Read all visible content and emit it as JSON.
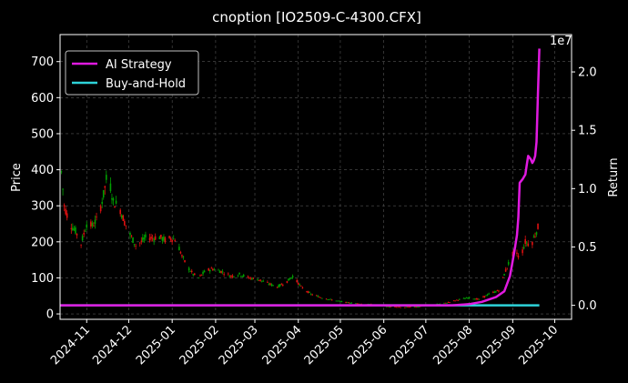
{
  "chart_data": {
    "type": "candlestick+line",
    "title": "cnoption [IO2509-C-4300.CFX]",
    "left_axis": {
      "label": "Price",
      "ylim": [
        -15,
        775
      ],
      "ticks": [
        0,
        100,
        200,
        300,
        400,
        500,
        600,
        700
      ]
    },
    "right_axis": {
      "label": "Return",
      "offset_text": "1e7",
      "ylim": [
        -0.12,
        2.32
      ],
      "ticks": [
        0.0,
        0.5,
        1.0,
        1.5,
        2.0
      ],
      "tick_labels": [
        "0.0",
        "0.5",
        "1.0",
        "1.5",
        "2.0"
      ]
    },
    "x_axis": {
      "xlim": [
        "2024-10-13",
        "2025-10-13"
      ],
      "tick_dates": [
        "2024-11-01",
        "2024-12-01",
        "2025-01-01",
        "2025-02-01",
        "2025-03-01",
        "2025-04-01",
        "2025-05-01",
        "2025-06-01",
        "2025-07-01",
        "2025-08-01",
        "2025-09-01",
        "2025-10-01"
      ],
      "tick_labels": [
        "2024-11",
        "2024-12",
        "2025-01",
        "2025-02",
        "2025-03",
        "2025-04",
        "2025-05",
        "2025-06",
        "2025-07",
        "2025-08",
        "2025-09",
        "2025-10"
      ]
    },
    "grid": true,
    "legend": {
      "placement": "top-left",
      "entries": [
        {
          "name": "AI Strategy",
          "color": "#e01ae0"
        },
        {
          "name": "Buy-and-Hold",
          "color": "#2ed3d9"
        }
      ]
    },
    "up_color": "#00a000",
    "down_color": "#e01010",
    "price_series": [
      [
        "2024-10-13",
        440
      ],
      [
        "2024-10-16",
        300
      ],
      [
        "2024-10-20",
        250
      ],
      [
        "2024-10-24",
        230
      ],
      [
        "2024-10-28",
        195
      ],
      [
        "2024-11-01",
        250
      ],
      [
        "2024-11-05",
        245
      ],
      [
        "2024-11-09",
        265
      ],
      [
        "2024-11-13",
        330
      ],
      [
        "2024-11-16",
        395
      ],
      [
        "2024-11-20",
        310
      ],
      [
        "2024-11-24",
        300
      ],
      [
        "2024-11-28",
        255
      ],
      [
        "2024-12-02",
        220
      ],
      [
        "2024-12-06",
        190
      ],
      [
        "2024-12-10",
        200
      ],
      [
        "2024-12-14",
        215
      ],
      [
        "2024-12-18",
        210
      ],
      [
        "2024-12-22",
        215
      ],
      [
        "2024-12-27",
        205
      ],
      [
        "2024-12-31",
        210
      ],
      [
        "2025-01-04",
        205
      ],
      [
        "2025-01-08",
        160
      ],
      [
        "2025-01-12",
        130
      ],
      [
        "2025-01-16",
        110
      ],
      [
        "2025-01-20",
        100
      ],
      [
        "2025-01-25",
        120
      ],
      [
        "2025-01-30",
        125
      ],
      [
        "2025-02-05",
        118
      ],
      [
        "2025-02-12",
        105
      ],
      [
        "2025-02-18",
        110
      ],
      [
        "2025-02-25",
        100
      ],
      [
        "2025-03-04",
        95
      ],
      [
        "2025-03-10",
        85
      ],
      [
        "2025-03-17",
        75
      ],
      [
        "2025-03-24",
        90
      ],
      [
        "2025-03-28",
        105
      ],
      [
        "2025-04-03",
        75
      ],
      [
        "2025-04-10",
        55
      ],
      [
        "2025-04-18",
        45
      ],
      [
        "2025-04-26",
        38
      ],
      [
        "2025-05-05",
        32
      ],
      [
        "2025-05-15",
        28
      ],
      [
        "2025-05-25",
        26
      ],
      [
        "2025-06-05",
        20
      ],
      [
        "2025-06-15",
        18
      ],
      [
        "2025-06-25",
        20
      ],
      [
        "2025-07-05",
        25
      ],
      [
        "2025-07-15",
        30
      ],
      [
        "2025-07-25",
        40
      ],
      [
        "2025-08-01",
        45
      ],
      [
        "2025-08-08",
        40
      ],
      [
        "2025-08-15",
        55
      ],
      [
        "2025-08-22",
        65
      ],
      [
        "2025-08-26",
        110
      ],
      [
        "2025-08-30",
        150
      ],
      [
        "2025-09-03",
        180
      ],
      [
        "2025-09-06",
        150
      ],
      [
        "2025-09-10",
        200
      ],
      [
        "2025-09-14",
        190
      ],
      [
        "2025-09-17",
        220
      ],
      [
        "2025-09-20",
        250
      ],
      [
        "2025-09-22",
        205
      ]
    ],
    "ai_strategy_return": [
      [
        "2024-10-13",
        0.0
      ],
      [
        "2025-07-20",
        0.0
      ],
      [
        "2025-08-01",
        0.01
      ],
      [
        "2025-08-10",
        0.03
      ],
      [
        "2025-08-20",
        0.07
      ],
      [
        "2025-08-26",
        0.12
      ],
      [
        "2025-08-30",
        0.25
      ],
      [
        "2025-09-02",
        0.45
      ],
      [
        "2025-09-04",
        0.6
      ],
      [
        "2025-09-05",
        0.75
      ],
      [
        "2025-09-06",
        1.05
      ],
      [
        "2025-09-08",
        1.08
      ],
      [
        "2025-09-10",
        1.12
      ],
      [
        "2025-09-11",
        1.2
      ],
      [
        "2025-09-12",
        1.28
      ],
      [
        "2025-09-14",
        1.25
      ],
      [
        "2025-09-15",
        1.22
      ],
      [
        "2025-09-16",
        1.24
      ],
      [
        "2025-09-17",
        1.28
      ],
      [
        "2025-09-18",
        1.4
      ],
      [
        "2025-09-19",
        1.8
      ],
      [
        "2025-09-20",
        2.2
      ]
    ],
    "buy_and_hold_return": [
      [
        "2024-10-13",
        0.0
      ],
      [
        "2025-09-20",
        0.0
      ]
    ]
  }
}
